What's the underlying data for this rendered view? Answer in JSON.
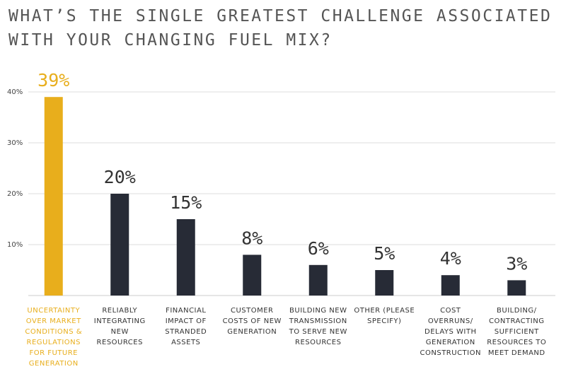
{
  "chart_data": {
    "type": "bar",
    "title": "WHAT’S THE SINGLE GREATEST CHALLENGE ASSOCIATED WITH YOUR CHANGING FUEL MIX?",
    "categories": [
      "UNCERTAINTY OVER MARKET CONDITIONS & REGULATIONS FOR FUTURE GENERATION",
      "RELIABLY INTEGRATING NEW RESOURCES",
      "FINANCIAL IMPACT OF STRANDED ASSETS",
      "CUSTOMER COSTS OF NEW GENERATION",
      "BUILDING NEW TRANSMISSION TO SERVE NEW RESOURCES",
      "OTHER (PLEASE SPECIFY)",
      "COST OVERRUNS/ DELAYS WITH GENERATION CONSTRUCTION",
      "BUILDING/ CONTRACTING SUFFICIENT RESOURCES TO MEET DEMAND"
    ],
    "values": [
      39,
      20,
      15,
      8,
      6,
      5,
      4,
      3
    ],
    "value_labels": [
      "39%",
      "20%",
      "15%",
      "8%",
      "6%",
      "5%",
      "4%",
      "3%"
    ],
    "colors": [
      "#e8ae1c",
      "#272b36",
      "#272b36",
      "#272b36",
      "#272b36",
      "#272b36",
      "#272b36",
      "#272b36"
    ],
    "ylim": [
      0,
      45
    ],
    "yticks": [
      {
        "value": 10,
        "label": "10%"
      },
      {
        "value": 20,
        "label": "20%"
      },
      {
        "value": 30,
        "label": "30%"
      },
      {
        "value": 40,
        "label": "40%"
      }
    ],
    "grid": true
  }
}
